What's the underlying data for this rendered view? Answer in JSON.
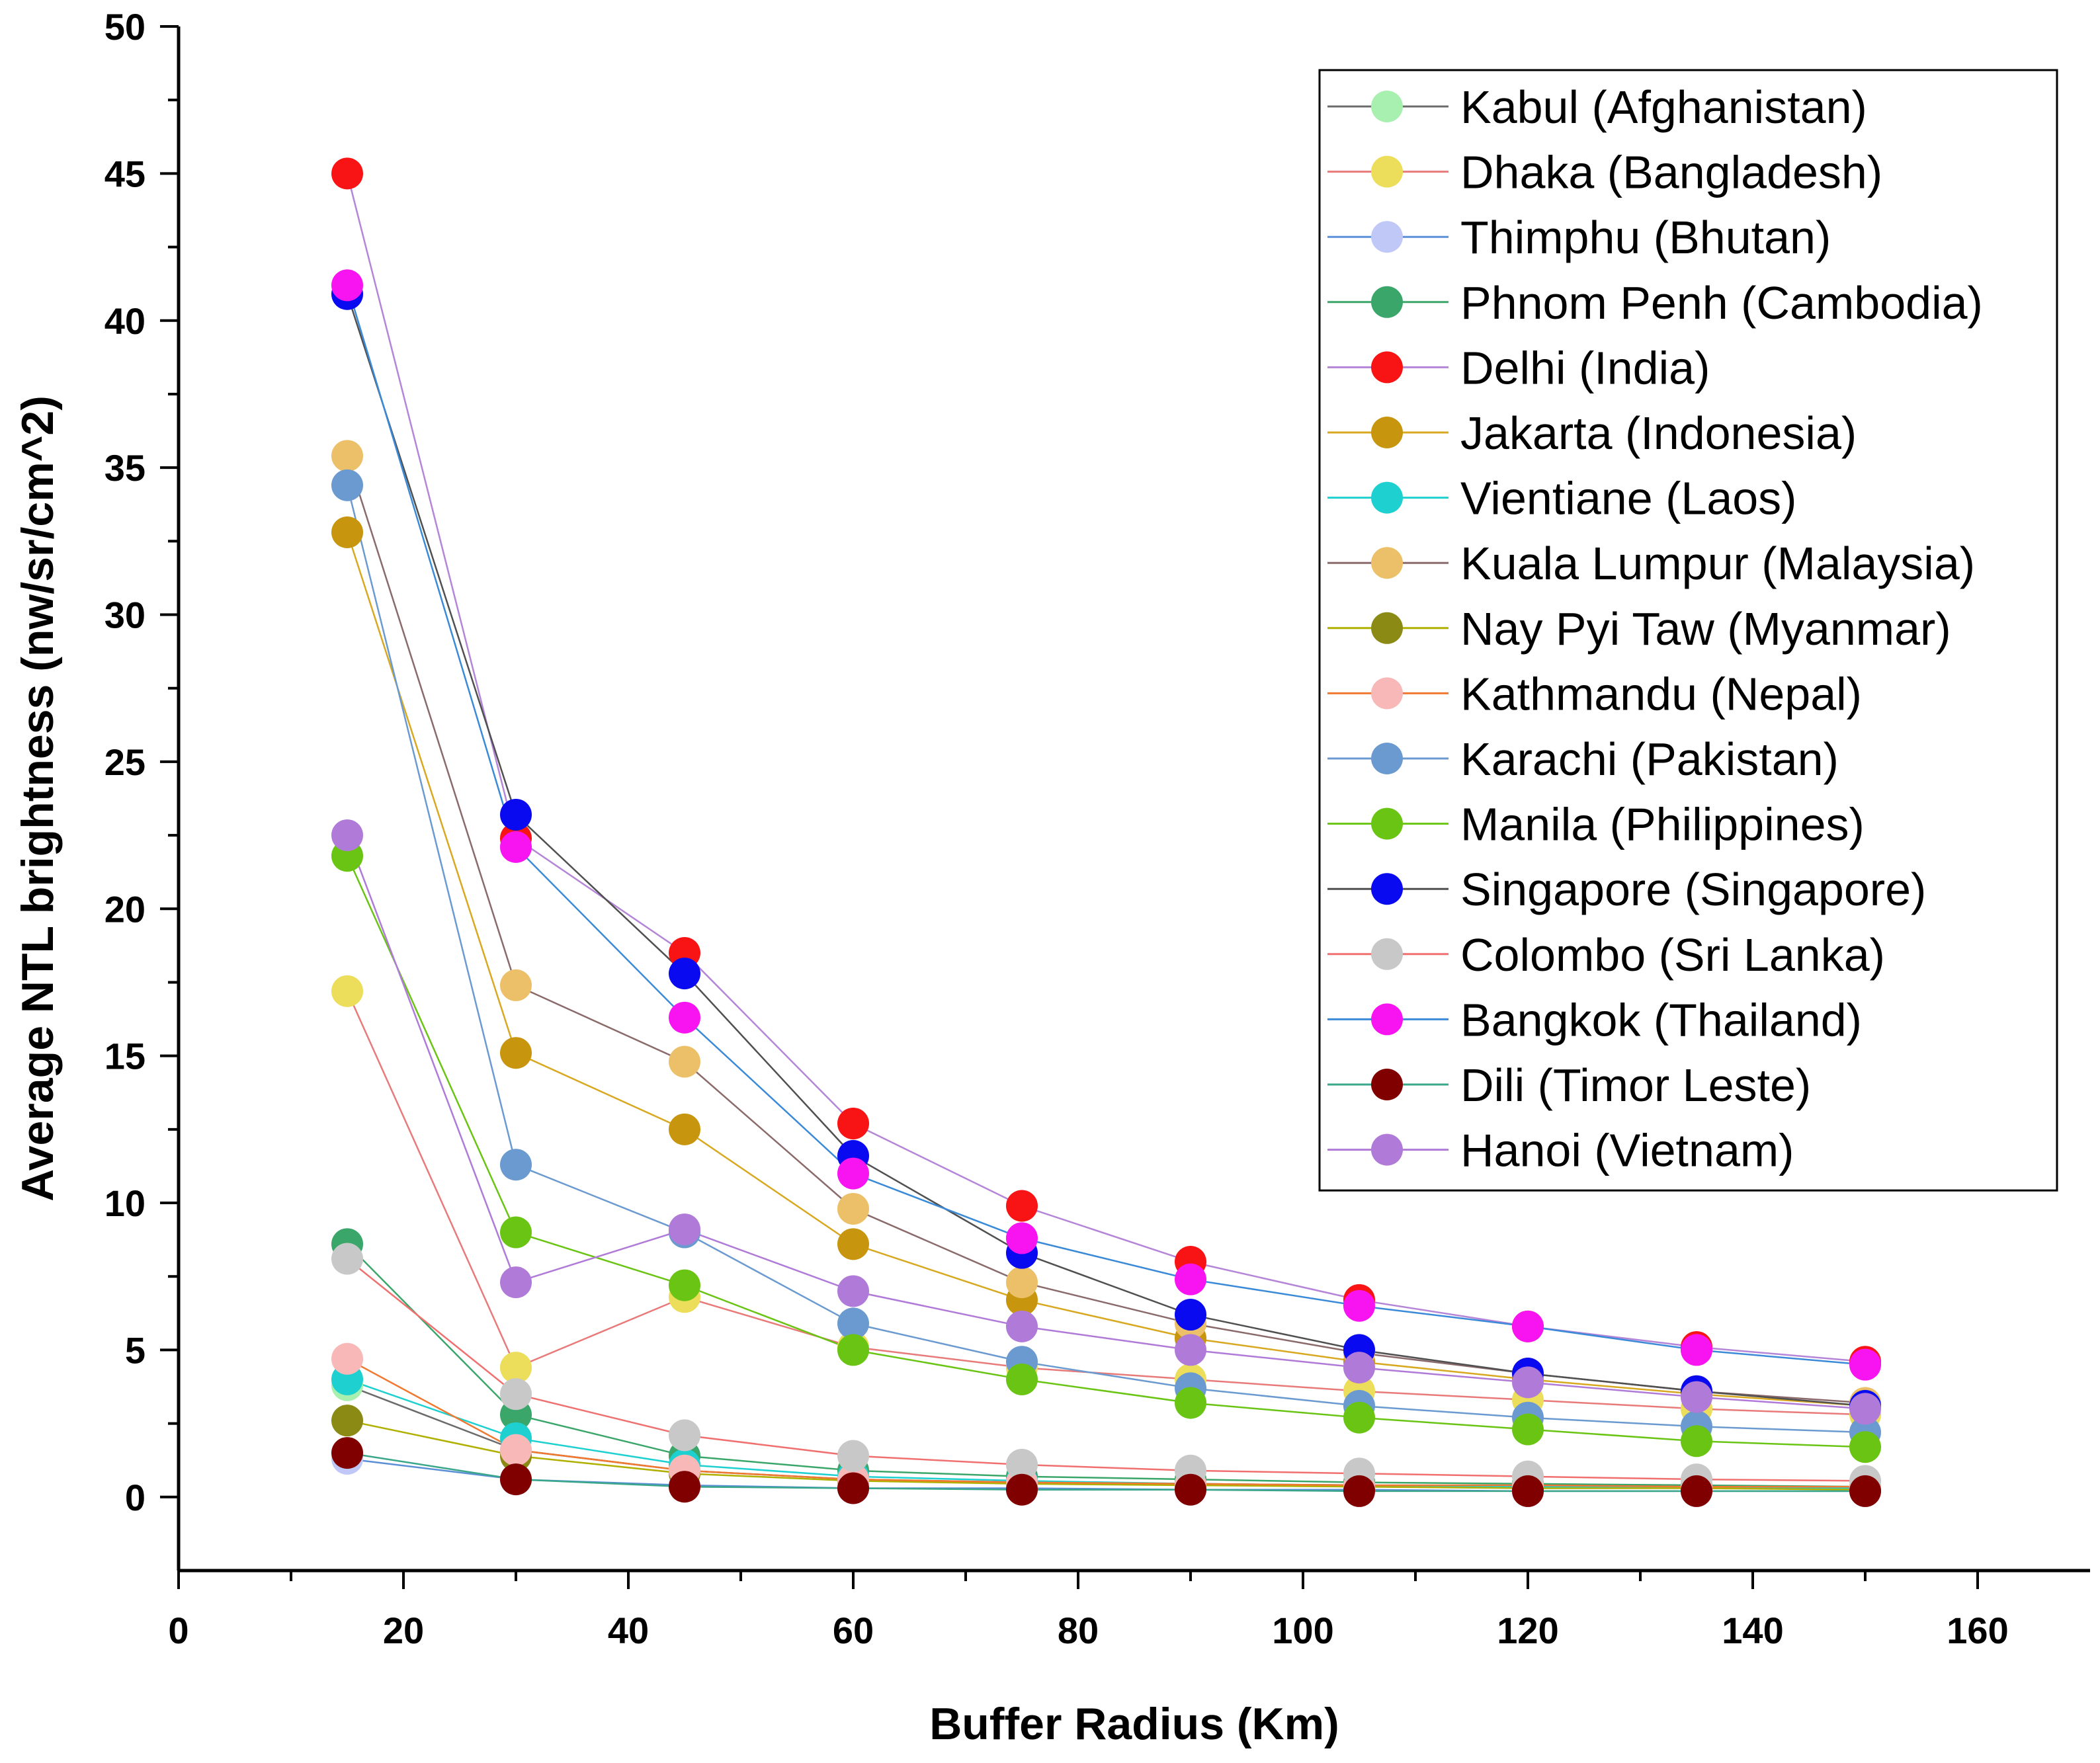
{
  "chart_data": {
    "type": "line",
    "title": "",
    "xlabel": "Buffer Radius (Km)",
    "ylabel": "Average NTL brightness (nw/sr/cm^2)",
    "xlim": [
      0,
      170
    ],
    "ylim": [
      -2.5,
      50
    ],
    "xticks": [
      0,
      20,
      40,
      60,
      80,
      100,
      120,
      140,
      160
    ],
    "xtick_labels": [
      "0",
      "20",
      "40",
      "60",
      "80",
      "100",
      "120",
      "140",
      "160"
    ],
    "yticks": [
      0,
      5,
      10,
      15,
      20,
      25,
      30,
      35,
      40,
      45,
      50
    ],
    "ytick_labels": [
      "0",
      "5",
      "10",
      "15",
      "20",
      "25",
      "30",
      "35",
      "40",
      "45",
      "50"
    ],
    "grid": false,
    "legend_position": "top-right",
    "x": [
      15,
      30,
      45,
      60,
      75,
      90,
      105,
      120,
      135,
      150
    ],
    "series": [
      {
        "name": "Kabul (Afghanistan)",
        "color": "#a8f0b0",
        "line_color": "#6b6b6b",
        "values": [
          3.8,
          1.6,
          0.9,
          0.6,
          0.5,
          0.45,
          0.4,
          0.35,
          0.35,
          0.3
        ]
      },
      {
        "name": "Dhaka (Bangladesh)",
        "color": "#ecde5a",
        "line_color": "#e87a7a",
        "values": [
          17.2,
          4.4,
          6.8,
          5.1,
          4.4,
          4.0,
          3.6,
          3.3,
          3.0,
          2.8
        ]
      },
      {
        "name": "Thimphu (Bhutan)",
        "color": "#c0c8f8",
        "line_color": "#5b8fd8",
        "values": [
          1.3,
          0.6,
          0.4,
          0.3,
          0.3,
          0.25,
          0.25,
          0.2,
          0.2,
          0.2
        ]
      },
      {
        "name": "Phnom Penh (Cambodia)",
        "color": "#3aa66a",
        "line_color": "#3aa66a",
        "values": [
          8.6,
          2.8,
          1.4,
          0.9,
          0.7,
          0.6,
          0.5,
          0.45,
          0.4,
          0.35
        ]
      },
      {
        "name": "Delhi (India)",
        "color": "#f81414",
        "line_color": "#b585d8",
        "values": [
          45.0,
          22.4,
          18.5,
          12.7,
          9.9,
          8.0,
          6.7,
          5.8,
          5.1,
          4.6
        ]
      },
      {
        "name": "Jakarta (Indonesia)",
        "color": "#c8950e",
        "line_color": "#d8a820",
        "values": [
          32.8,
          15.1,
          12.5,
          8.6,
          6.7,
          5.4,
          4.6,
          4.0,
          3.5,
          3.1
        ]
      },
      {
        "name": "Vientiane (Laos)",
        "color": "#1ed0d0",
        "line_color": "#1ed0d0",
        "values": [
          4.0,
          2.0,
          1.1,
          0.7,
          0.55,
          0.45,
          0.4,
          0.35,
          0.3,
          0.3
        ]
      },
      {
        "name": "Kuala Lumpur (Malaysia)",
        "color": "#ecc068",
        "line_color": "#8a6a6a",
        "values": [
          35.4,
          17.4,
          14.8,
          9.8,
          7.3,
          5.9,
          4.9,
          4.2,
          3.6,
          3.2
        ]
      },
      {
        "name": "Nay Pyi Taw (Myanmar)",
        "color": "#8a8a14",
        "line_color": "#b0b000",
        "values": [
          2.6,
          1.4,
          0.8,
          0.55,
          0.45,
          0.4,
          0.35,
          0.3,
          0.3,
          0.25
        ]
      },
      {
        "name": "Kathmandu (Nepal)",
        "color": "#f8b8b8",
        "line_color": "#f07830",
        "values": [
          4.7,
          1.6,
          0.9,
          0.6,
          0.5,
          0.45,
          0.4,
          0.4,
          0.35,
          0.35
        ]
      },
      {
        "name": "Karachi (Pakistan)",
        "color": "#6a9ad0",
        "line_color": "#6a9ad0",
        "values": [
          34.4,
          11.3,
          9.0,
          5.9,
          4.6,
          3.7,
          3.1,
          2.7,
          2.4,
          2.2
        ]
      },
      {
        "name": "Manila (Philippines)",
        "color": "#6ac414",
        "line_color": "#6ac414",
        "values": [
          21.8,
          9.0,
          7.2,
          5.0,
          4.0,
          3.2,
          2.7,
          2.3,
          1.9,
          1.7
        ]
      },
      {
        "name": "Singapore (Singapore)",
        "color": "#0a0af0",
        "line_color": "#505050",
        "values": [
          40.9,
          23.2,
          17.8,
          11.6,
          8.3,
          6.2,
          5.0,
          4.2,
          3.6,
          3.1
        ]
      },
      {
        "name": "Colombo (Sri Lanka)",
        "color": "#c8c8c8",
        "line_color": "#f07070",
        "values": [
          8.1,
          3.5,
          2.1,
          1.4,
          1.1,
          0.9,
          0.8,
          0.7,
          0.6,
          0.55
        ]
      },
      {
        "name": "Bangkok (Thailand)",
        "color": "#f814f0",
        "line_color": "#3a8ad8",
        "values": [
          41.2,
          22.1,
          16.3,
          11.0,
          8.8,
          7.4,
          6.5,
          5.8,
          5.0,
          4.5
        ]
      },
      {
        "name": "Dili (Timor Leste)",
        "color": "#800000",
        "line_color": "#3aa68a",
        "values": [
          1.5,
          0.6,
          0.35,
          0.3,
          0.25,
          0.25,
          0.2,
          0.2,
          0.2,
          0.2
        ]
      },
      {
        "name": "Hanoi (Vietnam)",
        "color": "#b07ad8",
        "line_color": "#b07ad8",
        "values": [
          22.5,
          7.3,
          9.1,
          7.0,
          5.8,
          5.0,
          4.4,
          3.9,
          3.4,
          3.0
        ]
      }
    ]
  }
}
